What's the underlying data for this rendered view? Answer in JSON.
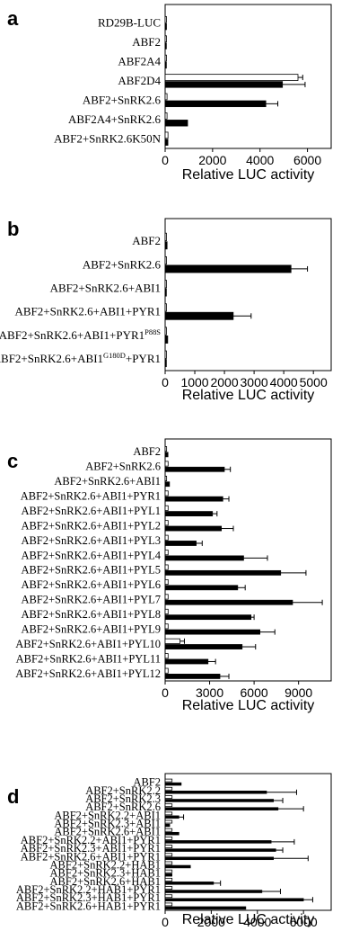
{
  "chart_data": [
    {
      "type": "bar",
      "panel": "a",
      "categories": [
        "RD29B-LUC",
        "ABF2",
        "ABF2A4",
        "ABF2D4",
        "ABF2+SnRK2.6",
        "ABF2A4+SnRK2.6",
        "ABF2+SnRK2.6K50N"
      ],
      "series": [
        {
          "style": "open",
          "values": [
            20,
            20,
            20,
            5600,
            80,
            80,
            120
          ],
          "errors": [
            0,
            0,
            0,
            200,
            0,
            0,
            0
          ]
        },
        {
          "style": "filled",
          "values": [
            60,
            50,
            50,
            4950,
            4250,
            950,
            120
          ],
          "errors": [
            0,
            0,
            0,
            950,
            500,
            0,
            0
          ]
        }
      ],
      "xlabel": "Relative LUC activity",
      "xticks": [
        "0",
        "2000",
        "4000",
        "6000"
      ],
      "xlim": [
        0,
        7000
      ],
      "series_colors": [
        "#ffffff",
        "#000000"
      ]
    },
    {
      "type": "bar",
      "panel": "b",
      "categories": [
        "ABF2",
        "ABF2+SnRK2.6",
        "ABF2+SnRK2.6+ABI1",
        "ABF2+SnRK2.6+ABI1+PYR1",
        "ABF2+SnRK2.6+ABI1+PYR1^P88S",
        "ABF2+SnRK2.6+ABI1^G180D+PYR1"
      ],
      "series": [
        {
          "style": "open",
          "values": [
            20,
            40,
            20,
            40,
            20,
            20
          ],
          "errors": [
            0,
            0,
            0,
            0,
            0,
            0
          ]
        },
        {
          "style": "filled",
          "values": [
            70,
            4250,
            40,
            2300,
            90,
            30
          ],
          "errors": [
            0,
            550,
            0,
            600,
            0,
            0
          ]
        }
      ],
      "xlabel": "Relative LUC activity",
      "xticks": [
        "0",
        "1000",
        "2000",
        "3000",
        "4000",
        "5000"
      ],
      "xlim": [
        0,
        5600
      ],
      "series_colors": [
        "#ffffff",
        "#000000"
      ]
    },
    {
      "type": "bar",
      "panel": "c",
      "categories": [
        "ABF2",
        "ABF2+SnRK2.6",
        "ABF2+SnRK2.6+ABI1",
        "ABF2+SnRK2.6+ABI1+PYR1",
        "ABF2+SnRK2.6+ABI1+PYL1",
        "ABF2+SnRK2.6+ABI1+PYL2",
        "ABF2+SnRK2.6+ABI1+PYL3",
        "ABF2+SnRK2.6+ABI1+PYL4",
        "ABF2+SnRK2.6+ABI1+PYL5",
        "ABF2+SnRK2.6+ABI1+PYL6",
        "ABF2+SnRK2.6+ABI1+PYL7",
        "ABF2+SnRK2.6+ABI1+PYL8",
        "ABF2+SnRK2.6+ABI1+PYL9",
        "ABF2+SnRK2.6+ABI1+PYL10",
        "ABF2+SnRK2.6+ABI1+PYL11",
        "ABF2+SnRK2.6+ABI1+PYL12"
      ],
      "series": [
        {
          "style": "open",
          "values": [
            100,
            200,
            100,
            200,
            200,
            200,
            200,
            200,
            200,
            200,
            200,
            200,
            200,
            1000,
            200,
            200
          ],
          "errors": [
            0,
            0,
            0,
            0,
            0,
            0,
            0,
            0,
            0,
            0,
            0,
            0,
            0,
            300,
            0,
            0
          ]
        },
        {
          "style": "filled",
          "values": [
            200,
            4000,
            300,
            3900,
            3200,
            3800,
            2100,
            5300,
            7800,
            4900,
            8600,
            5800,
            6400,
            5200,
            2900,
            3700
          ],
          "errors": [
            0,
            400,
            0,
            400,
            300,
            800,
            400,
            1600,
            1700,
            500,
            2000,
            200,
            1000,
            900,
            500,
            600
          ]
        }
      ],
      "xlabel": "Relative LUC activity",
      "xticks": [
        "0",
        "3000",
        "6000",
        "9000"
      ],
      "xlim": [
        0,
        11200
      ],
      "series_colors": [
        "#ffffff",
        "#000000"
      ]
    },
    {
      "type": "bar",
      "panel": "d",
      "categories": [
        "ABF2",
        "ABF2+SnRK2.2",
        "ABF2+SnRK2.3",
        "ABF2+SnRK2.6",
        "ABF2+SnRK2.2+ABI1",
        "ABF2+SnRK2.3+ABI1",
        "ABF2+SnRK2.6+ABI1",
        "ABF2+SnRK2.2+ABI1+PYR1",
        "ABF2+SnRK2.3+ABI1+PYR1",
        "ABF2+SnRK2.6+ABI1+PYR1",
        "ABF2+SnRK2.2+HAB1",
        "ABF2+SnRK2.3+HAB1",
        "ABF2+SnRK2.6+HAB1",
        "ABF2+SnRK2.2+HAB1+PYR1",
        "ABF2+SnRK2.3+HAB1+PYR1",
        "ABF2+SnRK2.6+HAB1+PYR1"
      ],
      "series": [
        {
          "style": "open",
          "values": [
            300,
            300,
            300,
            300,
            300,
            300,
            300,
            300,
            300,
            300,
            300,
            300,
            300,
            300,
            300,
            300
          ],
          "errors": [
            0,
            0,
            0,
            0,
            0,
            0,
            0,
            0,
            0,
            0,
            0,
            0,
            0,
            0,
            0,
            0
          ]
        },
        {
          "style": "filled",
          "values": [
            700,
            4400,
            4700,
            4900,
            600,
            200,
            600,
            4600,
            4800,
            4700,
            1100,
            300,
            2100,
            4200,
            6000,
            3500
          ],
          "errors": [
            0,
            1300,
            400,
            1100,
            200,
            0,
            0,
            1000,
            300,
            1500,
            0,
            0,
            300,
            800,
            400,
            0
          ]
        }
      ],
      "xlabel": "Relative LUC activity",
      "xticks": [
        "0",
        "2000",
        "4000",
        "6000"
      ],
      "xlim": [
        0,
        7200
      ],
      "series_colors": [
        "#ffffff",
        "#000000"
      ]
    }
  ]
}
